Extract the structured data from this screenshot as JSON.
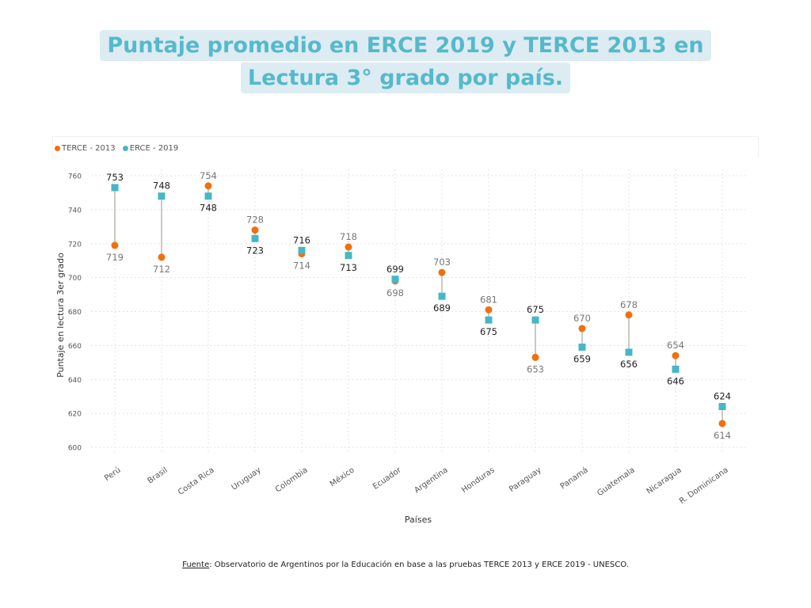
{
  "title": {
    "line1": "Puntaje promedio en ERCE 2019 y TERCE 2013 en",
    "line2": "Lectura 3° grado por país."
  },
  "source": {
    "label": "Fuente",
    "text": ": Observatorio de Argentinos por la Educación en base a las pruebas TERCE 2013 y ERCE 2019 - UNESCO."
  },
  "colors": {
    "terce": "#f0700e",
    "erce": "#45b8c6",
    "connector": "#b8b8b0",
    "grid": "#e4e4e4"
  },
  "chart_data": {
    "type": "scatter",
    "xlabel": "Países",
    "ylabel": "Puntaje en lectura 3er grado",
    "ylim": [
      600,
      760
    ],
    "yticks": [
      600,
      620,
      640,
      660,
      680,
      700,
      720,
      740,
      760
    ],
    "legend_position": "top-left",
    "grid": true,
    "categories": [
      "Perú",
      "Brasil",
      "Costa Rica",
      "Uruguay",
      "Colombia",
      "México",
      "Ecuador",
      "Argentina",
      "Honduras",
      "Paraguay",
      "Panamá",
      "Guatemala",
      "Nicaragua",
      "R. Dominicana"
    ],
    "series": [
      {
        "name": "TERCE - 2013",
        "marker": "circle",
        "values": [
          719,
          712,
          754,
          728,
          714,
          718,
          698,
          703,
          681,
          653,
          670,
          678,
          654,
          614
        ]
      },
      {
        "name": "ERCE - 2019",
        "marker": "square",
        "values": [
          753,
          748,
          748,
          723,
          716,
          713,
          699,
          689,
          675,
          675,
          659,
          656,
          646,
          624
        ]
      }
    ]
  }
}
